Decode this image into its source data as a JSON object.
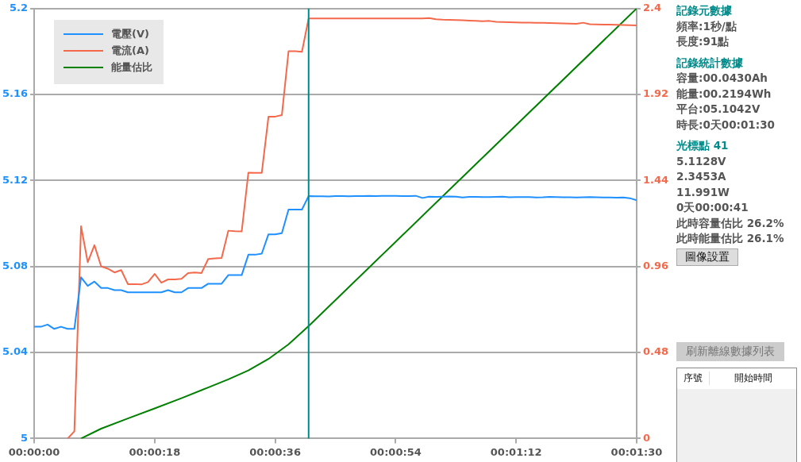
{
  "chart_data": [
    {
      "type": "line",
      "x": [
        0,
        1,
        2,
        3,
        4,
        5,
        6,
        7,
        8,
        9,
        10,
        11,
        12,
        13,
        14,
        15,
        16,
        17,
        18,
        19,
        20,
        21,
        22,
        23,
        24,
        25,
        26,
        27,
        28,
        29,
        30,
        31,
        32,
        33,
        34,
        35,
        36,
        37,
        38,
        39,
        40,
        41,
        42,
        43,
        44,
        45,
        46,
        47,
        48,
        49,
        50,
        51,
        52,
        53,
        54,
        55,
        56,
        57,
        58,
        59,
        60,
        61,
        62,
        63,
        64,
        65,
        66,
        67,
        68,
        69,
        70,
        71,
        72,
        73,
        74,
        75,
        76,
        77,
        78,
        79,
        80,
        81,
        82,
        83,
        84,
        85,
        86,
        87,
        88,
        89,
        90
      ],
      "series": [
        {
          "name": "電壓(V)",
          "color": "#1e90ff",
          "values": [
            5.052,
            5.052,
            5.053,
            5.051,
            5.052,
            5.051,
            5.051,
            5.075,
            5.071,
            5.073,
            5.07,
            5.07,
            5.069,
            5.069,
            5.068,
            5.068,
            5.068,
            5.068,
            5.068,
            5.068,
            5.069,
            5.068,
            5.068,
            5.07,
            5.07,
            5.07,
            5.072,
            5.072,
            5.072,
            5.076,
            5.076,
            5.076,
            5.0855,
            5.0855,
            5.086,
            5.095,
            5.095,
            5.0955,
            5.1065,
            5.1065,
            5.1065,
            5.1128,
            5.1127,
            5.1127,
            5.1126,
            5.1128,
            5.1128,
            5.1127,
            5.1128,
            5.1128,
            5.1129,
            5.1128,
            5.1129,
            5.1129,
            5.1129,
            5.1128,
            5.1128,
            5.1129,
            5.1119,
            5.1125,
            5.1124,
            5.1125,
            5.1126,
            5.1125,
            5.1121,
            5.1124,
            5.1124,
            5.1123,
            5.1123,
            5.1124,
            5.1125,
            5.1122,
            5.1123,
            5.1123,
            5.1123,
            5.1121,
            5.1122,
            5.1124,
            5.1123,
            5.1122,
            5.1122,
            5.1121,
            5.1122,
            5.1123,
            5.1122,
            5.1121,
            5.1121,
            5.112,
            5.1121,
            5.1118,
            5.1108
          ]
        },
        {
          "name": "電流(A)",
          "color": "#f4694c",
          "axis": "y2",
          "values": [
            null,
            null,
            null,
            null,
            null,
            0,
            0.04,
            1.185,
            0.984,
            1.079,
            0.961,
            0.948,
            0.927,
            0.94,
            0.862,
            0.862,
            0.86,
            0.873,
            0.919,
            0.87,
            0.888,
            0.888,
            0.891,
            0.924,
            0.927,
            0.924,
            1.002,
            1.005,
            1.008,
            1.16,
            1.157,
            1.156,
            1.484,
            1.483,
            1.483,
            1.796,
            1.797,
            1.805,
            2.162,
            2.162,
            2.159,
            2.345,
            2.345,
            2.345,
            2.345,
            2.345,
            2.345,
            2.345,
            2.345,
            2.345,
            2.345,
            2.345,
            2.345,
            2.345,
            2.345,
            2.345,
            2.345,
            2.345,
            2.345,
            2.347,
            2.34,
            2.338,
            2.337,
            2.336,
            2.335,
            2.333,
            2.331,
            2.329,
            2.331,
            2.326,
            2.325,
            2.324,
            2.323,
            2.322,
            2.322,
            2.321,
            2.32,
            2.319,
            2.318,
            2.317,
            2.316,
            2.315,
            2.321,
            2.313,
            2.312,
            2.311,
            2.31,
            2.309,
            2.308,
            2.307,
            2.306
          ]
        },
        {
          "name": "能量估比",
          "color": "#008000",
          "axis": "y2",
          "x": [
            7,
            10,
            14,
            18,
            22,
            26,
            29,
            32,
            35,
            38,
            41,
            90
          ],
          "values": [
            0,
            0.055,
            0.112,
            0.168,
            0.225,
            0.285,
            0.33,
            0.38,
            0.444,
            0.526,
            0.628,
            2.4
          ]
        }
      ],
      "xlim": [
        0,
        90
      ],
      "xticks": [
        {
          "value": 0,
          "label": "00:00:00"
        },
        {
          "value": 18,
          "label": "00:00:18"
        },
        {
          "value": 36,
          "label": "00:00:36"
        },
        {
          "value": 54,
          "label": "00:00:54"
        },
        {
          "value": 72,
          "label": "00:01:12"
        },
        {
          "value": 90,
          "label": "00:01:30"
        }
      ],
      "ylim": [
        5,
        5.2
      ],
      "yticks": [
        5,
        5.04,
        5.08,
        5.12,
        5.16,
        5.2
      ],
      "y2lim": [
        0,
        2.4
      ],
      "y2ticks": [
        0,
        0.48,
        0.96,
        1.44,
        1.92,
        2.4
      ],
      "ref_lines": [
        {
          "axis": "x",
          "value": 41,
          "color": "#008b8b"
        }
      ],
      "grid": "y",
      "legend": "top left",
      "marker": "none",
      "line_style": "solid"
    },
    {
      "type": "other",
      "annotations": [
        "記錄元數據",
        "頻率:1秒/點",
        "長度:91點",
        "記錄統計數據",
        "容量:00.0430Ah",
        "能量:00.2194Wh",
        "平台:05.1042V",
        "時長:0天00:01:30",
        "光標點 41",
        "5.1128V",
        "2.3453A",
        "11.991W",
        "0天00:00:41",
        "此時容量估比 26.2%",
        "此時能量估比 26.1%",
        "圖像設置",
        "刷新離線數據列表",
        "序號",
        "開始時間"
      ]
    }
  ]
}
